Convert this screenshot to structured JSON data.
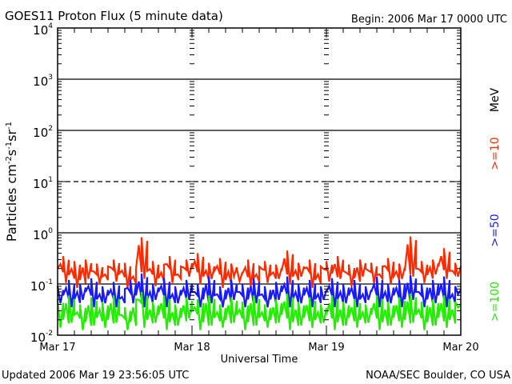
{
  "title": "GOES11 Proton Flux (5 minute data)",
  "begin": "Begin: 2006 Mar 17 0000 UTC",
  "updated": "Updated 2006 Mar 19 23:56:05 UTC",
  "credit": "NOAA/SEC Boulder, CO USA",
  "chart_data": {
    "type": "line",
    "title": "GOES11 Proton Flux (5 minute data)",
    "xlabel": "Universal Time",
    "ylabel": "Particles cm-2s-1sr-1",
    "ylabel_parts": {
      "base": "Particles cm",
      "e1": "-2",
      "s": "s",
      "e2": "-1",
      "sr": "sr",
      "e3": "-1"
    },
    "yscale": "log",
    "ylim": [
      0.01,
      10000
    ],
    "yticks": [
      {
        "base": "10",
        "exp": "-2"
      },
      {
        "base": "10",
        "exp": "-1"
      },
      {
        "base": "10",
        "exp": "0"
      },
      {
        "base": "10",
        "exp": "1"
      },
      {
        "base": "10",
        "exp": "2"
      },
      {
        "base": "10",
        "exp": "3"
      },
      {
        "base": "10",
        "exp": "4"
      }
    ],
    "xlim_hours": [
      0,
      72
    ],
    "xticks": [
      "Mar 17",
      "Mar 18",
      "Mar 19",
      "Mar 20"
    ],
    "unit_label": "MeV",
    "reference_lines": [
      1000,
      100,
      10,
      1,
      0.1
    ],
    "x_hours_step": 1,
    "series": [
      {
        "name": ">=10",
        "color": "#ff2a00",
        "values": [
          0.2,
          0.35,
          0.15,
          0.28,
          0.12,
          0.3,
          0.18,
          0.25,
          0.14,
          0.22,
          0.3,
          0.16,
          0.26,
          0.12,
          0.2,
          0.82,
          0.18,
          0.28,
          0.13,
          0.24,
          0.35,
          0.15,
          0.22,
          0.3,
          0.2,
          0.4,
          0.14,
          0.26,
          0.18,
          0.32,
          0.12,
          0.25,
          0.2,
          0.16,
          0.3,
          0.13,
          0.22,
          0.28,
          0.15,
          0.24,
          0.18,
          0.45,
          0.14,
          0.26,
          0.2,
          0.3,
          0.12,
          0.22,
          0.28,
          0.16,
          0.35,
          0.18,
          0.24,
          0.13,
          0.3,
          0.2,
          0.26,
          0.15,
          0.22,
          0.32,
          0.14,
          0.25,
          0.18,
          0.85,
          0.2,
          0.28,
          0.15,
          0.3,
          0.22,
          0.5,
          0.18,
          0.26
        ]
      },
      {
        "name": ">=50",
        "color": "#1a1aff",
        "values": [
          0.09,
          0.06,
          0.12,
          0.05,
          0.1,
          0.07,
          0.13,
          0.05,
          0.09,
          0.06,
          0.11,
          0.05,
          0.08,
          0.12,
          0.06,
          0.16,
          0.05,
          0.1,
          0.07,
          0.13,
          0.05,
          0.09,
          0.06,
          0.12,
          0.07,
          0.1,
          0.05,
          0.14,
          0.06,
          0.09,
          0.05,
          0.12,
          0.07,
          0.1,
          0.05,
          0.13,
          0.06,
          0.09,
          0.05,
          0.11,
          0.07,
          0.14,
          0.05,
          0.1,
          0.06,
          0.12,
          0.05,
          0.09,
          0.07,
          0.13,
          0.05,
          0.1,
          0.06,
          0.12,
          0.05,
          0.09,
          0.07,
          0.14,
          0.05,
          0.1,
          0.06,
          0.12,
          0.05,
          0.15,
          0.07,
          0.1,
          0.05,
          0.12,
          0.06,
          0.14,
          0.05,
          0.09
        ]
      },
      {
        "name": ">=100",
        "color": "#22ee00",
        "values": [
          0.05,
          0.02,
          0.06,
          0.025,
          0.04,
          0.018,
          0.055,
          0.022,
          0.045,
          0.02,
          0.06,
          0.025,
          0.035,
          0.018,
          0.05,
          0.07,
          0.02,
          0.045,
          0.025,
          0.06,
          0.018,
          0.04,
          0.022,
          0.055,
          0.03,
          0.05,
          0.018,
          0.06,
          0.022,
          0.04,
          0.02,
          0.055,
          0.025,
          0.045,
          0.018,
          0.06,
          0.022,
          0.04,
          0.02,
          0.05,
          0.025,
          0.065,
          0.018,
          0.045,
          0.022,
          0.055,
          0.02,
          0.04,
          0.025,
          0.06,
          0.018,
          0.045,
          0.022,
          0.05,
          0.02,
          0.04,
          0.025,
          0.06,
          0.018,
          0.045,
          0.022,
          0.055,
          0.02,
          0.065,
          0.025,
          0.045,
          0.018,
          0.05,
          0.022,
          0.06,
          0.02,
          0.045
        ]
      }
    ]
  }
}
